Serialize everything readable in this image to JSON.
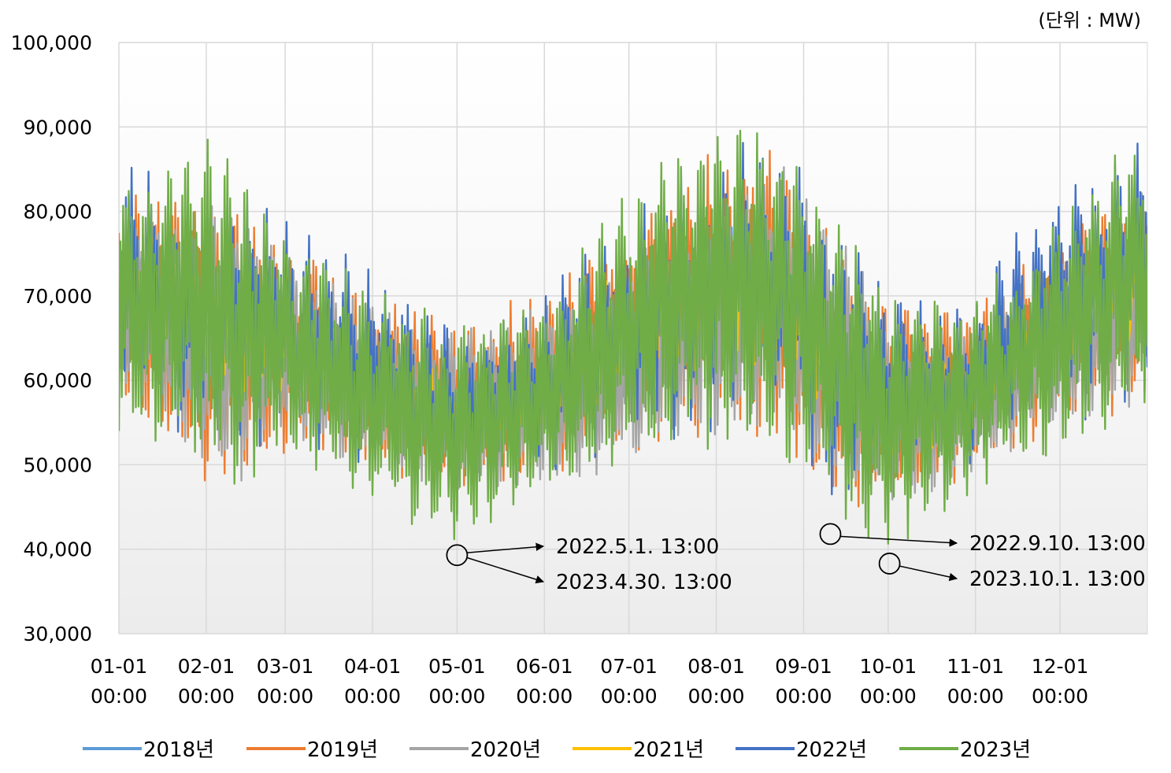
{
  "chart_data": {
    "type": "line",
    "unit_label": "(단위 : MW)",
    "ylim": [
      30000,
      100000
    ],
    "y_ticks": [
      "30,000",
      "40,000",
      "50,000",
      "60,000",
      "70,000",
      "80,000",
      "90,000",
      "100,000"
    ],
    "y_tick_values": [
      30000,
      40000,
      50000,
      60000,
      70000,
      80000,
      90000,
      100000
    ],
    "x_ticks": [
      {
        "line1": "01-01",
        "line2": "00:00",
        "day": 0
      },
      {
        "line1": "02-01",
        "line2": "00:00",
        "day": 31
      },
      {
        "line1": "03-01",
        "line2": "00:00",
        "day": 59
      },
      {
        "line1": "04-01",
        "line2": "00:00",
        "day": 90
      },
      {
        "line1": "05-01",
        "line2": "00:00",
        "day": 120
      },
      {
        "line1": "06-01",
        "line2": "00:00",
        "day": 151
      },
      {
        "line1": "07-01",
        "line2": "00:00",
        "day": 181
      },
      {
        "line1": "08-01",
        "line2": "00:00",
        "day": 212
      },
      {
        "line1": "09-01",
        "line2": "00:00",
        "day": 243
      },
      {
        "line1": "10-01",
        "line2": "00:00",
        "day": 273
      },
      {
        "line1": "11-01",
        "line2": "00:00",
        "day": 304
      },
      {
        "line1": "12-01",
        "line2": "00:00",
        "day": 334
      }
    ],
    "xlim_days": [
      0,
      365
    ],
    "grid": true,
    "legend_position": "bottom",
    "series": [
      {
        "name": "2018년",
        "color": "#5B9BD5",
        "min_days": [
          0,
          30,
          45,
          60,
          90,
          120,
          150,
          180,
          210,
          235,
          250,
          273,
          300,
          330,
          364
        ],
        "min_values": [
          55000,
          48000,
          47000,
          50000,
          48000,
          46000,
          45000,
          48000,
          50000,
          50000,
          44000,
          41000,
          46000,
          50000,
          55000
        ],
        "max_days": [
          0,
          30,
          45,
          60,
          90,
          120,
          150,
          180,
          210,
          235,
          250,
          273,
          300,
          330,
          364
        ],
        "max_values": [
          86000,
          87000,
          88000,
          80000,
          72000,
          68000,
          70000,
          82000,
          92000,
          91000,
          85000,
          70000,
          70000,
          80000,
          86000
        ]
      },
      {
        "name": "2019년",
        "color": "#ED7D31",
        "min_days": [
          0,
          30,
          45,
          60,
          90,
          120,
          150,
          180,
          210,
          235,
          250,
          273,
          300,
          330,
          364
        ],
        "min_values": [
          56000,
          45000,
          42000,
          50000,
          48000,
          45000,
          46000,
          48000,
          50000,
          50000,
          42000,
          42000,
          47000,
          52000,
          55000
        ],
        "max_days": [
          0,
          30,
          45,
          60,
          90,
          120,
          150,
          180,
          210,
          235,
          250,
          273,
          300,
          330,
          364
        ],
        "max_values": [
          84000,
          84000,
          85000,
          78000,
          72000,
          69000,
          72000,
          80000,
          90000,
          91000,
          82000,
          72000,
          70000,
          78000,
          85000
        ]
      },
      {
        "name": "2020년",
        "color": "#A5A5A5",
        "min_days": [
          0,
          30,
          45,
          60,
          90,
          120,
          150,
          180,
          210,
          235,
          250,
          273,
          300,
          330,
          364
        ],
        "min_values": [
          57000,
          48000,
          44000,
          52000,
          48000,
          46000,
          46000,
          48000,
          51000,
          52000,
          46000,
          43000,
          47000,
          52000,
          56000
        ],
        "max_days": [
          0,
          30,
          45,
          60,
          90,
          120,
          150,
          180,
          210,
          235,
          250,
          273,
          300,
          330,
          364
        ],
        "max_values": [
          82000,
          82000,
          84000,
          76000,
          70000,
          67000,
          70000,
          76000,
          82000,
          89000,
          82000,
          70000,
          68000,
          76000,
          84000
        ]
      },
      {
        "name": "2021년",
        "color": "#FFC000",
        "min_days": [
          0,
          30,
          45,
          60,
          90,
          120,
          150,
          180,
          210,
          235,
          250,
          273,
          300,
          330,
          364
        ],
        "min_values": [
          55000,
          47000,
          40000,
          50000,
          47000,
          46000,
          46000,
          48000,
          50000,
          50000,
          44000,
          42000,
          47000,
          52000,
          55000
        ],
        "max_days": [
          0,
          30,
          45,
          60,
          90,
          120,
          150,
          180,
          210,
          235,
          250,
          273,
          300,
          330,
          364
        ],
        "max_values": [
          90000,
          88000,
          86000,
          78000,
          72000,
          68000,
          72000,
          84000,
          91000,
          90000,
          82000,
          75000,
          71000,
          82000,
          90000
        ]
      },
      {
        "name": "2022년",
        "color": "#4472C4",
        "min_days": [
          0,
          30,
          45,
          60,
          90,
          120,
          150,
          180,
          210,
          235,
          250,
          273,
          300,
          330,
          364
        ],
        "min_values": [
          55000,
          47000,
          47000,
          50000,
          46000,
          41000,
          46000,
          48000,
          50000,
          50000,
          42000,
          42000,
          46000,
          50000,
          55000
        ],
        "max_days": [
          0,
          30,
          45,
          60,
          90,
          120,
          150,
          180,
          210,
          235,
          250,
          273,
          300,
          330,
          364
        ],
        "max_values": [
          89000,
          88000,
          87000,
          82000,
          76000,
          70000,
          72000,
          84000,
          93000,
          92000,
          86000,
          74000,
          71000,
          86000,
          94000
        ]
      },
      {
        "name": "2023년",
        "color": "#70AD47",
        "min_days": [
          0,
          30,
          45,
          60,
          90,
          119,
          150,
          180,
          210,
          235,
          250,
          273,
          300,
          330,
          364
        ],
        "min_values": [
          51000,
          46000,
          46000,
          48000,
          44000,
          39000,
          45000,
          48000,
          50000,
          50000,
          43000,
          38500,
          45000,
          50000,
          54000
        ],
        "max_days": [
          0,
          30,
          45,
          60,
          90,
          120,
          150,
          180,
          210,
          235,
          250,
          273,
          300,
          330,
          364
        ],
        "max_values": [
          85000,
          92000,
          86000,
          80000,
          72000,
          68000,
          70000,
          84000,
          93000,
          90000,
          85000,
          72000,
          70000,
          80000,
          92000
        ]
      }
    ],
    "annotations": [
      {
        "text": "2022.5.1. 13:00",
        "day": 120.5,
        "value": 39300,
        "series": "2022년"
      },
      {
        "text": "2023.4.30. 13:00",
        "day": 119.5,
        "value": 39300,
        "series": "2023년"
      },
      {
        "text": "2022.9.10. 13:00",
        "day": 252.5,
        "value": 42000,
        "series": "2022년"
      },
      {
        "text": "2023.10.1. 13:00",
        "day": 273.5,
        "value": 38500,
        "series": "2023년"
      }
    ]
  }
}
